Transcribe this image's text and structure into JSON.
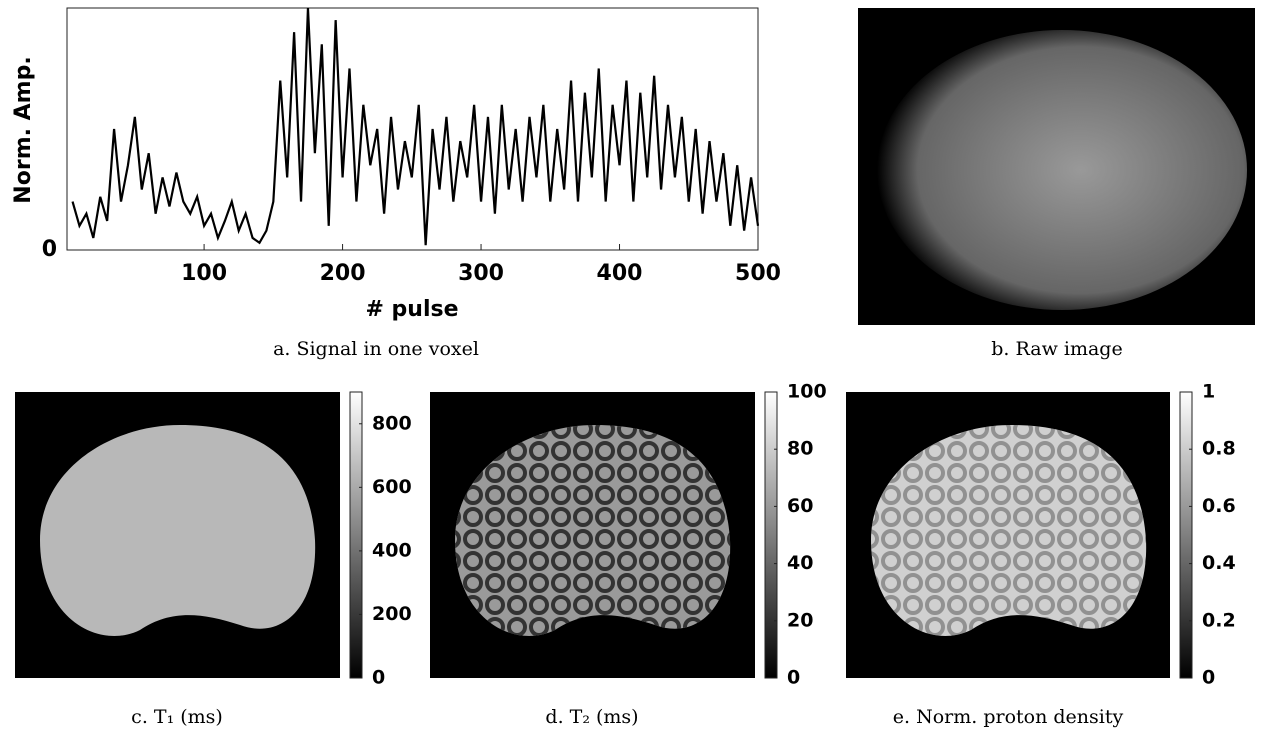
{
  "chart_data": {
    "type": "line",
    "y_label": "Norm. Amp.",
    "x_label": "# pulse",
    "x": [
      5,
      10,
      15,
      20,
      25,
      30,
      35,
      40,
      45,
      50,
      55,
      60,
      65,
      70,
      75,
      80,
      85,
      90,
      95,
      100,
      105,
      110,
      115,
      120,
      125,
      130,
      135,
      140,
      145,
      150,
      155,
      160,
      165,
      170,
      175,
      180,
      185,
      190,
      195,
      200,
      205,
      210,
      215,
      220,
      225,
      230,
      235,
      240,
      245,
      250,
      255,
      260,
      265,
      270,
      275,
      280,
      285,
      290,
      295,
      300,
      305,
      310,
      315,
      320,
      325,
      330,
      335,
      340,
      345,
      350,
      355,
      360,
      365,
      370,
      375,
      380,
      385,
      390,
      395,
      400,
      405,
      410,
      415,
      420,
      425,
      430,
      435,
      440,
      445,
      450,
      455,
      460,
      465,
      470,
      475,
      480,
      485,
      490,
      495,
      500
    ],
    "values": [
      0.2,
      0.1,
      0.15,
      0.05,
      0.22,
      0.12,
      0.5,
      0.2,
      0.35,
      0.55,
      0.25,
      0.4,
      0.15,
      0.3,
      0.18,
      0.32,
      0.2,
      0.15,
      0.22,
      0.1,
      0.15,
      0.05,
      0.12,
      0.2,
      0.08,
      0.15,
      0.05,
      0.03,
      0.08,
      0.2,
      0.7,
      0.3,
      0.9,
      0.2,
      1.0,
      0.4,
      0.85,
      0.1,
      0.95,
      0.3,
      0.75,
      0.2,
      0.6,
      0.35,
      0.5,
      0.15,
      0.55,
      0.25,
      0.45,
      0.3,
      0.6,
      0.02,
      0.5,
      0.25,
      0.55,
      0.2,
      0.45,
      0.3,
      0.6,
      0.2,
      0.55,
      0.15,
      0.6,
      0.25,
      0.5,
      0.2,
      0.55,
      0.3,
      0.6,
      0.2,
      0.5,
      0.25,
      0.7,
      0.2,
      0.65,
      0.3,
      0.75,
      0.2,
      0.6,
      0.35,
      0.7,
      0.2,
      0.65,
      0.3,
      0.72,
      0.25,
      0.6,
      0.3,
      0.55,
      0.2,
      0.5,
      0.15,
      0.45,
      0.2,
      0.4,
      0.1,
      0.35,
      0.08,
      0.3,
      0.1
    ],
    "color": "#000000",
    "xlim": [
      1,
      500
    ],
    "ylim": [
      0,
      1
    ],
    "xticks": [
      100,
      200,
      300,
      400,
      500
    ],
    "yticks": [
      0
    ]
  },
  "captions": [
    "a. Signal in one voxel",
    "b. Raw image",
    "c. T₁ (ms)",
    "d. T₂ (ms)",
    "e. Norm. proton density"
  ],
  "colorbars": [
    {
      "lim": [
        0,
        900
      ],
      "ticks": [
        0,
        200,
        400,
        600,
        800
      ]
    },
    {
      "lim": [
        0,
        100
      ],
      "ticks": [
        0,
        20,
        40,
        60,
        80,
        100
      ]
    },
    {
      "lim": [
        0,
        1
      ],
      "ticks": [
        0,
        0.2,
        0.4,
        0.6,
        0.8,
        1
      ]
    }
  ]
}
